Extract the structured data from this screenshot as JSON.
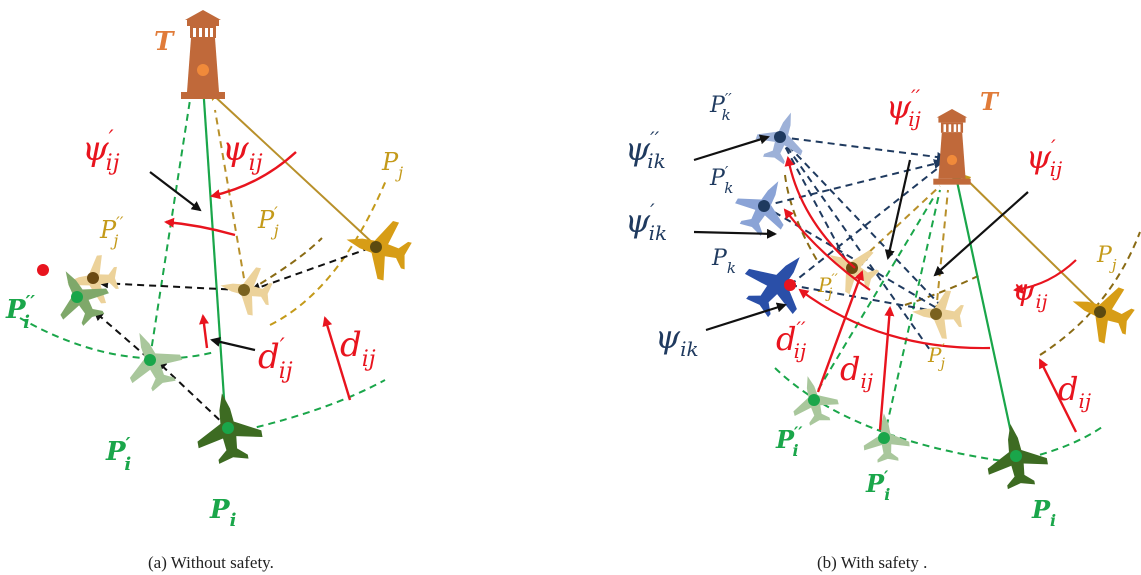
{
  "panel_a": {
    "caption": "(a) Without safety.",
    "labels": {
      "tower": "T",
      "pi": "P",
      "pi_sub": "i",
      "pi_prime": "P",
      "pi_prime_sub": "i",
      "pi_dprime": "P",
      "pi_dprime_sub": "i",
      "pj": "P",
      "pj_sub": "j",
      "pj_prime": "P",
      "pj_prime_sub": "j",
      "pj_dprime": "P",
      "pj_dprime_sub": "j",
      "psi": "ψ",
      "psi_sub": "ij",
      "psi_prime": "ψ",
      "psi_prime_sub": "ij",
      "d": "d",
      "d_sub": "ij",
      "d_prime": "d",
      "d_prime_sub": "ij"
    }
  },
  "panel_b": {
    "caption": "(b) With safety .",
    "labels": {
      "tower": "T",
      "pi": "P",
      "pi_sub": "i",
      "pi_prime": "P",
      "pi_prime_sub": "i",
      "pi_dprime": "P",
      "pi_dprime_sub": "i",
      "pj": "P",
      "pj_sub": "j",
      "pj_prime": "P",
      "pj_prime_sub": "j",
      "pj_dprime": "P",
      "pj_dprime_sub": "j",
      "pk": "P",
      "pk_sub": "k",
      "pk_prime": "P",
      "pk_prime_sub": "k",
      "pk_dprime": "P",
      "pk_dprime_sub": "k",
      "psi_ij": "ψ",
      "psi_ij_sub": "ij",
      "psi_prime_ij": "ψ",
      "psi_prime_ij_sub": "ij",
      "psi_dprime_ij": "ψ",
      "psi_dprime_ij_sub": "ij",
      "psi_ik": "ψ",
      "psi_ik_sub": "ik",
      "psi_prime_ik": "ψ",
      "psi_prime_ik_sub": "ik",
      "psi_dprime_ik": "ψ",
      "psi_dprime_ik_sub": "ik",
      "d_ij": "d",
      "d_ij_sub": "ij",
      "d_prime_ij": "d",
      "d_prime_ij_sub": "ij",
      "d_dprime_ij": "d",
      "d_dprime_ij_sub": "ij"
    }
  },
  "colors": {
    "tower": "#c0693a",
    "tower_label": "#e07b39",
    "green": "#1aa64a",
    "dark_green": "#3d6b22",
    "gold": "#c49a1a",
    "light_gold": "#e8c98a",
    "red": "#e8141e",
    "navy": "#1f3a5f",
    "blue": "#2a4fa8",
    "light_blue": "#8aa3d6"
  }
}
